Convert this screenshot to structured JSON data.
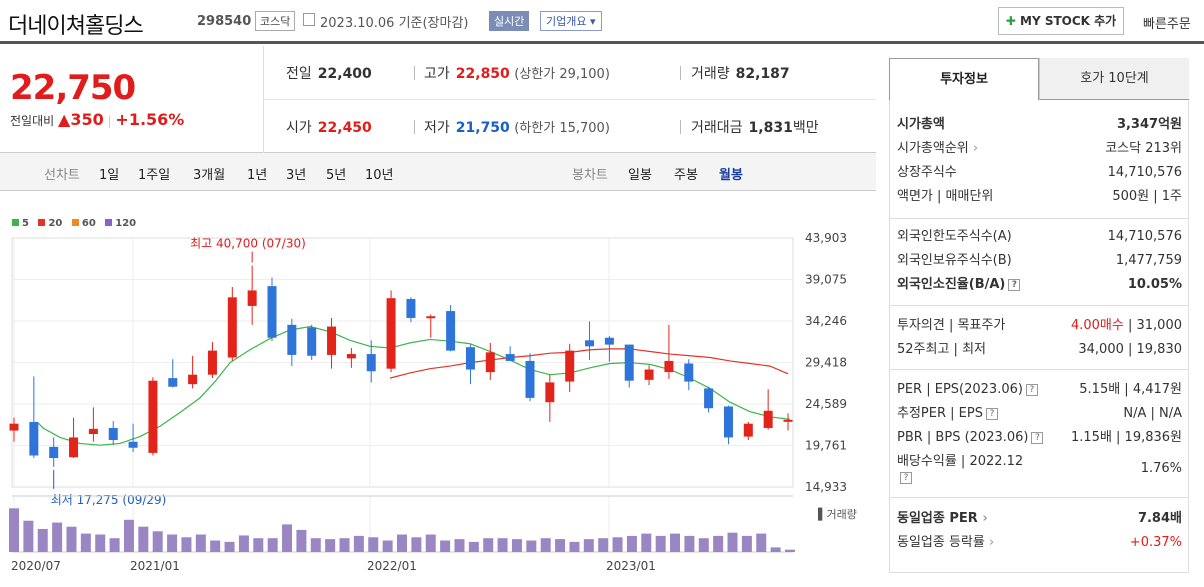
{
  "header": {
    "name": "더네이쳐홀딩스",
    "code": "298540",
    "market": "코스닥",
    "date": "2023.10.06 기준(장마감)",
    "live_label": "실시간",
    "corp_label": "기업개요",
    "mystock_label": "MY STOCK 추가",
    "quick_order": "빠른주문"
  },
  "price": {
    "current": "22,750",
    "change_label": "전일대비",
    "change": "350",
    "change_pct": "+1.56%",
    "prev_label": "전일",
    "prev": "22,400",
    "high_label": "고가",
    "high": "22,850",
    "upper_limit": "(상한가 29,100)",
    "volume_label": "거래량",
    "volume": "82,187",
    "open_label": "시가",
    "open": "22,450",
    "low_label": "저가",
    "low": "21,750",
    "lower_limit": "(하한가 15,700)",
    "amount_label": "거래대금",
    "amount": "1,831",
    "amount_unit": "백만"
  },
  "toolbar": {
    "line_label": "선차트",
    "line_periods": [
      "1일",
      "1주일",
      "3개월",
      "1년",
      "3년",
      "5년",
      "10년"
    ],
    "candle_label": "봉차트",
    "candle_periods": [
      "일봉",
      "주봉",
      "월봉"
    ]
  },
  "chart_data": {
    "type": "candlestick",
    "legend": [
      "5",
      "20",
      "60",
      "120"
    ],
    "legend_colors": [
      "#3cb44b",
      "#e6332a",
      "#f08a24",
      "#8e5ec9"
    ],
    "yticks": [
      "43,903",
      "39,075",
      "34,246",
      "29,418",
      "24,589",
      "19,761",
      "14,933"
    ],
    "ylim": [
      14933,
      43903
    ],
    "xticks": [
      "2020/07",
      "2021/01",
      "2022/01",
      "2023/01"
    ],
    "max_annotation": "최고 40,700 (07/30)",
    "min_annotation": "최저 17,275 (09/29)",
    "volume_label": "거래량",
    "candles": [
      {
        "o": 21500,
        "h": 23000,
        "l": 20200,
        "c": 22300
      },
      {
        "o": 22500,
        "h": 27800,
        "l": 18300,
        "c": 18600
      },
      {
        "o": 19600,
        "h": 20700,
        "l": 17275,
        "c": 18300
      },
      {
        "o": 18400,
        "h": 23000,
        "l": 18300,
        "c": 20700
      },
      {
        "o": 21100,
        "h": 24200,
        "l": 20200,
        "c": 21700
      },
      {
        "o": 21800,
        "h": 22600,
        "l": 19800,
        "c": 20400
      },
      {
        "o": 20200,
        "h": 22300,
        "l": 19000,
        "c": 19500
      },
      {
        "o": 18900,
        "h": 27700,
        "l": 18600,
        "c": 27300
      },
      {
        "o": 27600,
        "h": 29800,
        "l": 26500,
        "c": 26600
      },
      {
        "o": 26900,
        "h": 30200,
        "l": 26400,
        "c": 28000
      },
      {
        "o": 28000,
        "h": 31800,
        "l": 27600,
        "c": 30800
      },
      {
        "o": 30000,
        "h": 38200,
        "l": 29600,
        "c": 37000
      },
      {
        "o": 36000,
        "h": 40700,
        "l": 33800,
        "c": 37800
      },
      {
        "o": 38300,
        "h": 39300,
        "l": 31900,
        "c": 32300
      },
      {
        "o": 33800,
        "h": 34500,
        "l": 29000,
        "c": 30300
      },
      {
        "o": 33500,
        "h": 33800,
        "l": 29700,
        "c": 30200
      },
      {
        "o": 30300,
        "h": 34600,
        "l": 28700,
        "c": 33600
      },
      {
        "o": 29900,
        "h": 31100,
        "l": 28800,
        "c": 30400
      },
      {
        "o": 30400,
        "h": 32000,
        "l": 27100,
        "c": 28400
      },
      {
        "o": 28700,
        "h": 37800,
        "l": 28300,
        "c": 36900
      },
      {
        "o": 36800,
        "h": 37000,
        "l": 34100,
        "c": 34600
      },
      {
        "o": 34600,
        "h": 35000,
        "l": 32300,
        "c": 34800
      },
      {
        "o": 35400,
        "h": 36100,
        "l": 30700,
        "c": 30800
      },
      {
        "o": 31200,
        "h": 31500,
        "l": 26900,
        "c": 28600
      },
      {
        "o": 28300,
        "h": 31700,
        "l": 27400,
        "c": 30600
      },
      {
        "o": 30400,
        "h": 31300,
        "l": 29800,
        "c": 29600
      },
      {
        "o": 29600,
        "h": 30500,
        "l": 24900,
        "c": 25300
      },
      {
        "o": 24800,
        "h": 28000,
        "l": 22500,
        "c": 27100
      },
      {
        "o": 27200,
        "h": 31600,
        "l": 26000,
        "c": 30800
      },
      {
        "o": 32000,
        "h": 34200,
        "l": 29700,
        "c": 31300
      },
      {
        "o": 32300,
        "h": 32500,
        "l": 29500,
        "c": 31500
      },
      {
        "o": 31500,
        "h": 31500,
        "l": 26500,
        "c": 27300
      },
      {
        "o": 27400,
        "h": 29100,
        "l": 26800,
        "c": 28600
      },
      {
        "o": 28300,
        "h": 33800,
        "l": 27500,
        "c": 29600
      },
      {
        "o": 29300,
        "h": 29800,
        "l": 26200,
        "c": 27200
      },
      {
        "o": 26400,
        "h": 26600,
        "l": 23600,
        "c": 24100
      },
      {
        "o": 24300,
        "h": 24400,
        "l": 19900,
        "c": 20700
      },
      {
        "o": 20800,
        "h": 22500,
        "l": 20400,
        "c": 22300
      },
      {
        "o": 21800,
        "h": 26300,
        "l": 21600,
        "c": 23800
      },
      {
        "o": 22700,
        "h": 23500,
        "l": 21500,
        "c": 22750
      }
    ],
    "ma20": [
      [
        38,
        22400
      ],
      [
        43,
        21800
      ],
      [
        60,
        20700
      ],
      [
        80,
        20000
      ],
      [
        100,
        19800
      ],
      [
        120,
        20000
      ],
      [
        140,
        20800
      ],
      [
        160,
        22000
      ],
      [
        180,
        23600
      ],
      [
        200,
        25300
      ],
      [
        215,
        27200
      ],
      [
        230,
        29400
      ],
      [
        250,
        30900
      ],
      [
        270,
        32200
      ],
      [
        290,
        33200
      ],
      [
        310,
        33600
      ],
      [
        330,
        33000
      ],
      [
        350,
        32000
      ],
      [
        370,
        31300
      ],
      [
        390,
        31100
      ],
      [
        410,
        31700
      ],
      [
        430,
        32100
      ],
      [
        450,
        31900
      ],
      [
        470,
        31600
      ],
      [
        490,
        30700
      ],
      [
        510,
        29700
      ],
      [
        530,
        28600
      ],
      [
        550,
        28000
      ],
      [
        570,
        28200
      ],
      [
        590,
        28800
      ],
      [
        610,
        29300
      ],
      [
        630,
        29400
      ],
      [
        650,
        29200
      ],
      [
        670,
        28600
      ],
      [
        690,
        27600
      ],
      [
        710,
        26400
      ],
      [
        730,
        24800
      ],
      [
        750,
        23700
      ],
      [
        770,
        23100
      ],
      [
        790,
        22800
      ]
    ],
    "ma60": [
      [
        390,
        27600
      ],
      [
        410,
        28200
      ],
      [
        430,
        28700
      ],
      [
        450,
        29000
      ],
      [
        470,
        29400
      ],
      [
        490,
        29700
      ],
      [
        510,
        30000
      ],
      [
        530,
        30200
      ],
      [
        550,
        30500
      ],
      [
        570,
        30600
      ],
      [
        590,
        30900
      ],
      [
        610,
        31000
      ],
      [
        630,
        31000
      ],
      [
        650,
        30700
      ],
      [
        670,
        30400
      ],
      [
        690,
        30200
      ],
      [
        710,
        30000
      ],
      [
        730,
        29600
      ],
      [
        750,
        29300
      ],
      [
        770,
        29000
      ],
      [
        788,
        28100
      ]
    ],
    "volumes": [
      95,
      68,
      50,
      64,
      55,
      40,
      38,
      30,
      70,
      55,
      45,
      38,
      32,
      38,
      25,
      22,
      36,
      30,
      30,
      60,
      48,
      30,
      28,
      30,
      35,
      32,
      25,
      38,
      32,
      38,
      25,
      28,
      22,
      30,
      30,
      28,
      25,
      30,
      28,
      22,
      28,
      30,
      32,
      35,
      40,
      35,
      40,
      35,
      30,
      35,
      42,
      35,
      40,
      10,
      5
    ]
  },
  "side": {
    "tab_active": "투자정보",
    "tab_other": "호가 10단계",
    "g1": [
      {
        "l": "시가총액",
        "r": "3,347억원",
        "bold": true
      },
      {
        "l": "시가총액순위",
        "r": "코스닥 213위",
        "arrow": true
      },
      {
        "l": "상장주식수",
        "r": "14,710,576"
      },
      {
        "l": "액면가 | 매매단위",
        "r": "500원 | 1주"
      }
    ],
    "g2": [
      {
        "l": "외국인한도주식수(A)",
        "r": "14,710,576"
      },
      {
        "l": "외국인보유주식수(B)",
        "r": "1,477,759"
      },
      {
        "l": "외국인소진율(B/A)",
        "r": "10.05%",
        "bold": true,
        "q": true
      }
    ],
    "g3": [
      {
        "l": "투자의견 | 목표주가",
        "r1": "4.00매수",
        "r2": " | 31,000"
      },
      {
        "l": "52주최고 | 최저",
        "r": "34,000 | 19,830"
      }
    ],
    "g4": [
      {
        "l": "PER | EPS(2023.06)",
        "r": "5.15배 | 4,417원",
        "q": true
      },
      {
        "l": "추정PER | EPS",
        "r": "N/A | N/A",
        "q": true
      },
      {
        "l": "PBR | BPS (2023.06)",
        "r": "1.15배 | 19,836원",
        "q": true
      },
      {
        "l": "배당수익률 | 2022.12",
        "r": "1.76%",
        "q": true
      }
    ],
    "g5": [
      {
        "l": "동일업종 PER",
        "r": "7.84배",
        "bold": true,
        "arrow": true
      },
      {
        "l": "동일업종 등락률",
        "r": "+0.37%",
        "red": true,
        "arrow": true
      }
    ]
  }
}
